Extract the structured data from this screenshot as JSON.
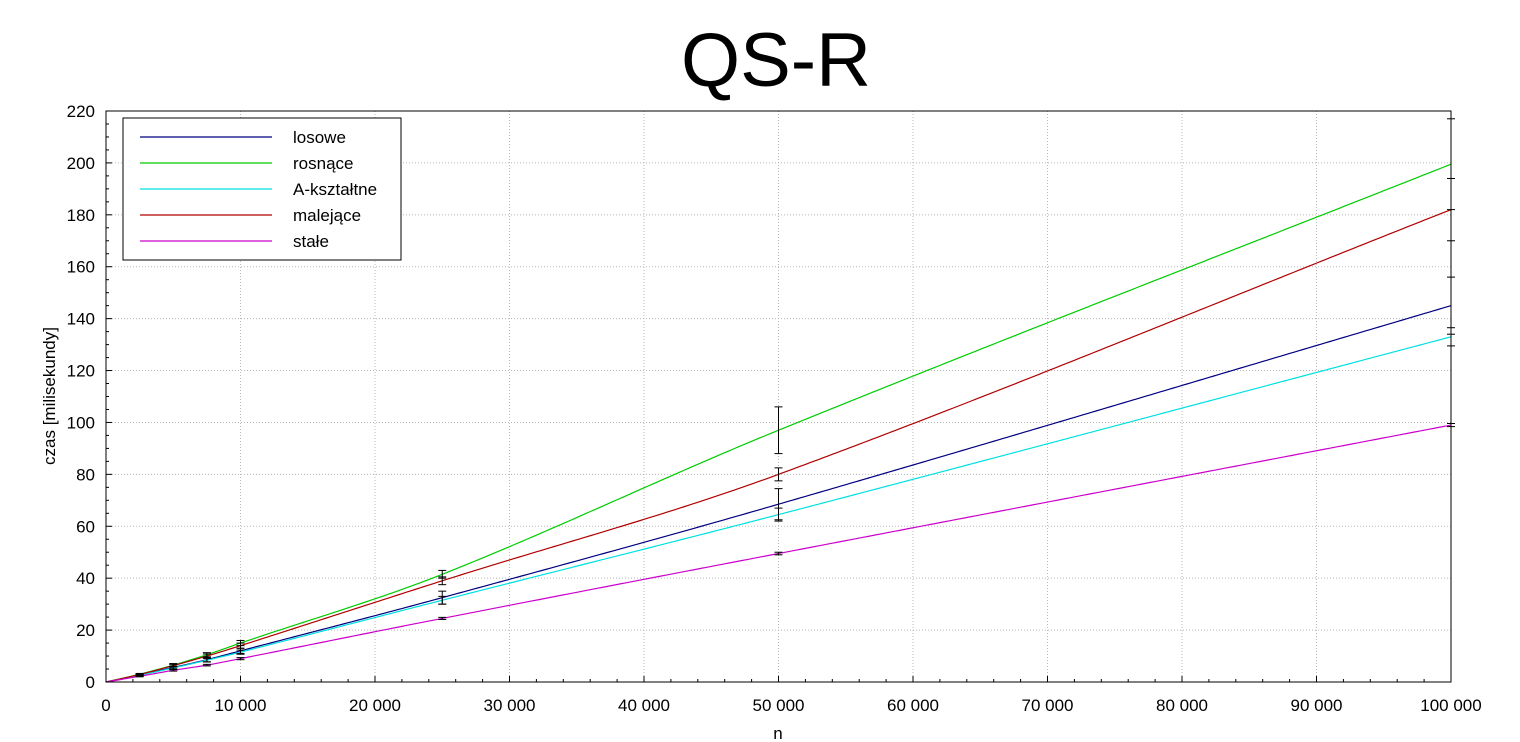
{
  "chart_data": {
    "type": "line",
    "title": "QS-R",
    "xlabel": "n",
    "ylabel": "czas [milisekundy]",
    "xlim": [
      0,
      100000
    ],
    "ylim": [
      0,
      220
    ],
    "grid": true,
    "legend_position": "top-left",
    "x_ticks": [
      0,
      10000,
      20000,
      30000,
      40000,
      50000,
      60000,
      70000,
      80000,
      90000,
      100000
    ],
    "x_tick_labels": [
      "0",
      "10 000",
      "20 000",
      "30 000",
      "40 000",
      "50 000",
      "60 000",
      "70 000",
      "80 000",
      "90 000",
      "100 000"
    ],
    "y_ticks": [
      0,
      20,
      40,
      60,
      80,
      100,
      120,
      140,
      160,
      180,
      200,
      220
    ],
    "y_tick_labels": [
      "0",
      "20",
      "40",
      "60",
      "80",
      "100",
      "120",
      "140",
      "160",
      "180",
      "200",
      "220"
    ],
    "x": [
      0,
      2500,
      5000,
      7500,
      10000,
      25000,
      50000,
      100000
    ],
    "series": [
      {
        "name": "losowe",
        "color": "#000080",
        "values": [
          0,
          2.7,
          5.6,
          8.6,
          12.0,
          32.5,
          68.5,
          145.0
        ],
        "errors": [
          0,
          0.3,
          0.5,
          0.8,
          1.0,
          2.5,
          6.0,
          11.0
        ]
      },
      {
        "name": "rosnące",
        "color": "#00cc00",
        "values": [
          0,
          3.0,
          6.5,
          10.5,
          15.0,
          41.5,
          97.0,
          199.5
        ],
        "errors": [
          0,
          0.3,
          0.6,
          0.8,
          1.0,
          1.5,
          9.0,
          17.5
        ]
      },
      {
        "name": "A-kształtne",
        "color": "#00e0e0",
        "values": [
          0,
          2.6,
          5.4,
          8.4,
          11.5,
          31.5,
          64.5,
          133.0
        ],
        "errors": [
          0,
          0.3,
          0.5,
          0.7,
          0.8,
          1.5,
          2.5,
          3.5
        ]
      },
      {
        "name": "malejące",
        "color": "#b00000",
        "values": [
          0,
          2.9,
          6.3,
          10.0,
          14.0,
          39.0,
          80.0,
          182.0
        ],
        "errors": [
          0,
          0.3,
          0.5,
          0.8,
          1.0,
          1.5,
          2.5,
          12.0
        ]
      },
      {
        "name": "stałe",
        "color": "#cc00cc",
        "values": [
          0,
          2.2,
          4.5,
          6.5,
          9.0,
          24.5,
          49.5,
          99.0
        ],
        "errors": [
          0,
          0.2,
          0.3,
          0.3,
          0.4,
          0.4,
          0.5,
          0.6
        ]
      }
    ]
  }
}
